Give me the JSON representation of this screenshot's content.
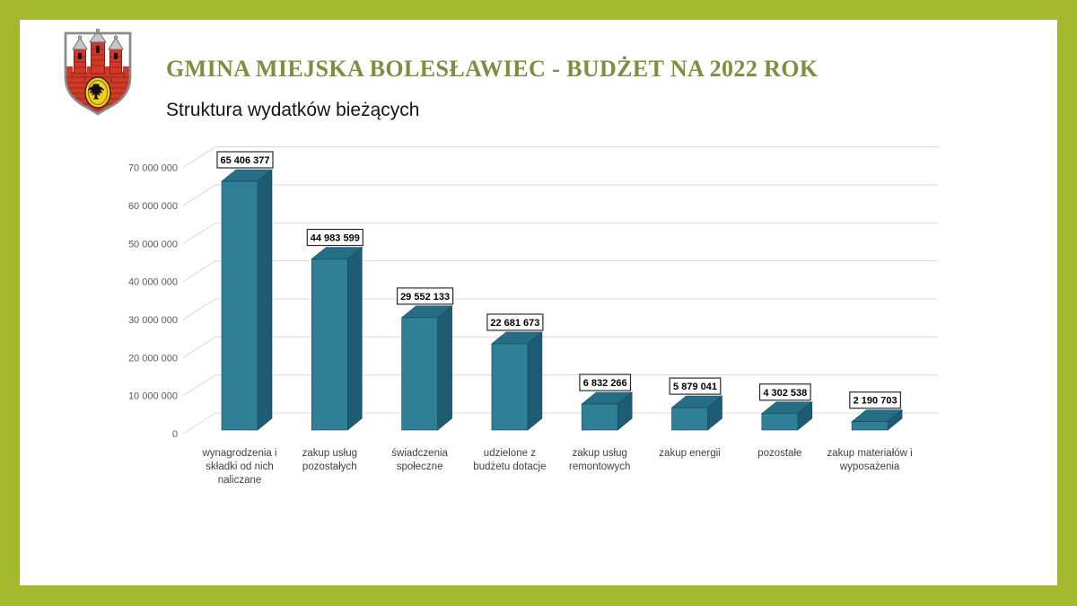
{
  "page": {
    "frame_color": "#a6b82e",
    "title_color": "#7e8e3e",
    "header": {
      "title": "GMINA MIEJSKA BOLESŁAWIEC - BUDŻET NA 2022 ROK",
      "subtitle": "Struktura wydatków bieżących",
      "crest": "herb-boleslawca"
    }
  },
  "chart_data": {
    "type": "bar",
    "style": "3d-column",
    "title": "Struktura wydatków bieżących",
    "categories": [
      "wynagrodzenia i składki od nich naliczane",
      "zakup usług pozostałych",
      "świadczenia społeczne",
      "udzielone z budżetu dotacje",
      "zakup usług remontowych",
      "zakup energii",
      "pozostałe",
      "zakup materiałów i wyposażenia"
    ],
    "category_lines": [
      [
        "wynagrodzenia i",
        "składki od nich",
        "naliczane"
      ],
      [
        "zakup usług",
        "pozostałych"
      ],
      [
        "świadczenia",
        "społeczne"
      ],
      [
        "udzielone z",
        "budżetu dotacje"
      ],
      [
        "zakup usług",
        "remontowych"
      ],
      [
        "zakup energii"
      ],
      [
        "pozostałe"
      ],
      [
        "zakup materiałów i",
        "wyposażenia"
      ]
    ],
    "values": [
      65406377,
      44983599,
      29552133,
      22681673,
      6832266,
      5879041,
      4302538,
      2190703
    ],
    "data_labels": [
      "65 406 377",
      "44 983 599",
      "29 552 133",
      "22 681 673",
      "6 832 266",
      "5 879 041",
      "4 302 538",
      "2 190 703"
    ],
    "xlabel": "",
    "ylabel": "",
    "ylim": [
      0,
      70000000
    ],
    "ytick_step": 10000000,
    "ytick_labels": [
      "0",
      "10 000 000",
      "20 000 000",
      "30 000 000",
      "40 000 000",
      "50 000 000",
      "60 000 000",
      "70 000 000"
    ],
    "grid": true,
    "legend": false,
    "colors": {
      "bar_front": "#2f7f97",
      "bar_top": "#256e86",
      "bar_side": "#1d5c72",
      "bar_edge": "#17485c",
      "gridline": "#d8d8d8",
      "axis_text": "#595959",
      "category_text": "#3f3f3f",
      "value_text": "#000000",
      "value_box_border": "#2b2b2b"
    }
  }
}
